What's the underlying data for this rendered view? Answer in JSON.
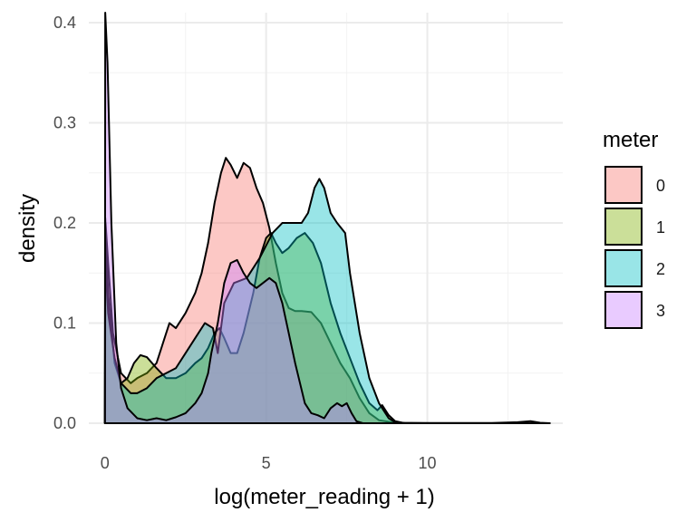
{
  "chart_data": {
    "type": "area",
    "chart_kind": "density",
    "xlabel": "log(meter_reading + 1)",
    "ylabel": "density",
    "xlim": [
      -0.5,
      14.2
    ],
    "ylim": [
      0,
      0.41
    ],
    "x_ticks": [
      0,
      5,
      10
    ],
    "x_tick_labels": [
      "0",
      "5",
      "10"
    ],
    "y_ticks": [
      0.0,
      0.1,
      0.2,
      0.3,
      0.4
    ],
    "y_tick_labels": [
      "0.0",
      "0.1",
      "0.2",
      "0.3",
      "0.4"
    ],
    "grid": true,
    "legend": {
      "title": "meter",
      "position": "right"
    },
    "fill_opacity": 0.4,
    "series": [
      {
        "label": "0",
        "color": "#F8766D",
        "points": [
          [
            0,
            0
          ],
          [
            0.02,
            0.2
          ],
          [
            0.1,
            0.16
          ],
          [
            0.25,
            0.09
          ],
          [
            0.5,
            0.05
          ],
          [
            0.8,
            0.04
          ],
          [
            1.0,
            0.045
          ],
          [
            1.3,
            0.05
          ],
          [
            1.6,
            0.06
          ],
          [
            1.8,
            0.08
          ],
          [
            2.0,
            0.1
          ],
          [
            2.2,
            0.095
          ],
          [
            2.5,
            0.11
          ],
          [
            2.8,
            0.13
          ],
          [
            3.0,
            0.15
          ],
          [
            3.2,
            0.18
          ],
          [
            3.4,
            0.22
          ],
          [
            3.6,
            0.25
          ],
          [
            3.75,
            0.265
          ],
          [
            3.9,
            0.258
          ],
          [
            4.1,
            0.245
          ],
          [
            4.3,
            0.26
          ],
          [
            4.5,
            0.255
          ],
          [
            4.7,
            0.235
          ],
          [
            4.9,
            0.22
          ],
          [
            5.1,
            0.195
          ],
          [
            5.3,
            0.16
          ],
          [
            5.5,
            0.13
          ],
          [
            5.7,
            0.115
          ],
          [
            5.9,
            0.112
          ],
          [
            6.1,
            0.112
          ],
          [
            6.4,
            0.111
          ],
          [
            6.7,
            0.1
          ],
          [
            7.0,
            0.08
          ],
          [
            7.3,
            0.06
          ],
          [
            7.6,
            0.045
          ],
          [
            7.9,
            0.025
          ],
          [
            8.2,
            0.01
          ],
          [
            8.5,
            0.003
          ],
          [
            9.0,
            0.0005
          ],
          [
            10,
            0.0002
          ],
          [
            12.0,
            0.0002
          ],
          [
            12.8,
            0.001
          ],
          [
            13.2,
            0.002
          ],
          [
            13.5,
            0.0005
          ],
          [
            13.8,
            0
          ]
        ]
      },
      {
        "label": "1",
        "color": "#7CAE00",
        "points": [
          [
            0,
            0
          ],
          [
            0.01,
            0.205
          ],
          [
            0.1,
            0.13
          ],
          [
            0.3,
            0.06
          ],
          [
            0.5,
            0.04
          ],
          [
            0.7,
            0.045
          ],
          [
            0.9,
            0.06
          ],
          [
            1.1,
            0.068
          ],
          [
            1.3,
            0.066
          ],
          [
            1.6,
            0.055
          ],
          [
            1.9,
            0.045
          ],
          [
            2.2,
            0.045
          ],
          [
            2.5,
            0.05
          ],
          [
            2.8,
            0.06
          ],
          [
            3.0,
            0.065
          ],
          [
            3.2,
            0.075
          ],
          [
            3.4,
            0.09
          ],
          [
            3.55,
            0.095
          ],
          [
            3.7,
            0.085
          ],
          [
            3.9,
            0.07
          ],
          [
            4.1,
            0.07
          ],
          [
            4.3,
            0.09
          ],
          [
            4.6,
            0.13
          ],
          [
            4.8,
            0.165
          ],
          [
            5.0,
            0.185
          ],
          [
            5.15,
            0.19
          ],
          [
            5.3,
            0.18
          ],
          [
            5.5,
            0.17
          ],
          [
            5.7,
            0.175
          ],
          [
            5.95,
            0.185
          ],
          [
            6.2,
            0.19
          ],
          [
            6.45,
            0.18
          ],
          [
            6.7,
            0.16
          ],
          [
            7.0,
            0.12
          ],
          [
            7.3,
            0.09
          ],
          [
            7.6,
            0.065
          ],
          [
            7.9,
            0.04
          ],
          [
            8.2,
            0.02
          ],
          [
            8.45,
            0.013
          ],
          [
            8.6,
            0.018
          ],
          [
            8.8,
            0.008
          ],
          [
            9.0,
            0.002
          ],
          [
            9.3,
            0
          ]
        ]
      },
      {
        "label": "2",
        "color": "#00BFC4",
        "points": [
          [
            0,
            0
          ],
          [
            0.01,
            0.165
          ],
          [
            0.1,
            0.11
          ],
          [
            0.3,
            0.065
          ],
          [
            0.5,
            0.04
          ],
          [
            0.8,
            0.03
          ],
          [
            1.0,
            0.03
          ],
          [
            1.3,
            0.035
          ],
          [
            1.6,
            0.045
          ],
          [
            1.9,
            0.05
          ],
          [
            2.2,
            0.055
          ],
          [
            2.5,
            0.07
          ],
          [
            2.8,
            0.085
          ],
          [
            3.1,
            0.1
          ],
          [
            3.35,
            0.095
          ],
          [
            3.5,
            0.07
          ],
          [
            3.7,
            0.12
          ],
          [
            4.0,
            0.14
          ],
          [
            4.4,
            0.145
          ],
          [
            4.8,
            0.165
          ],
          [
            5.2,
            0.19
          ],
          [
            5.5,
            0.2
          ],
          [
            5.8,
            0.2
          ],
          [
            6.1,
            0.2
          ],
          [
            6.3,
            0.21
          ],
          [
            6.5,
            0.235
          ],
          [
            6.65,
            0.244
          ],
          [
            6.8,
            0.235
          ],
          [
            7.0,
            0.21
          ],
          [
            7.2,
            0.2
          ],
          [
            7.45,
            0.19
          ],
          [
            7.6,
            0.15
          ],
          [
            7.9,
            0.09
          ],
          [
            8.2,
            0.045
          ],
          [
            8.5,
            0.02
          ],
          [
            8.8,
            0.005
          ],
          [
            9.0,
            0.001
          ],
          [
            9.3,
            0
          ]
        ]
      },
      {
        "label": "3",
        "color": "#C77CFF",
        "points": [
          [
            0,
            0
          ],
          [
            0.01,
            0.41
          ],
          [
            0.08,
            0.36
          ],
          [
            0.2,
            0.2
          ],
          [
            0.35,
            0.08
          ],
          [
            0.5,
            0.035
          ],
          [
            0.7,
            0.015
          ],
          [
            1.0,
            0.005
          ],
          [
            1.3,
            0.003
          ],
          [
            1.6,
            0.005
          ],
          [
            1.9,
            0.003
          ],
          [
            2.2,
            0.006
          ],
          [
            2.5,
            0.01
          ],
          [
            2.8,
            0.02
          ],
          [
            3.0,
            0.03
          ],
          [
            3.2,
            0.05
          ],
          [
            3.3,
            0.07
          ],
          [
            3.5,
            0.1
          ],
          [
            3.7,
            0.14
          ],
          [
            3.9,
            0.16
          ],
          [
            4.1,
            0.163
          ],
          [
            4.3,
            0.15
          ],
          [
            4.5,
            0.14
          ],
          [
            4.7,
            0.135
          ],
          [
            4.9,
            0.14
          ],
          [
            5.1,
            0.145
          ],
          [
            5.3,
            0.14
          ],
          [
            5.5,
            0.12
          ],
          [
            5.7,
            0.09
          ],
          [
            5.9,
            0.06
          ],
          [
            6.05,
            0.04
          ],
          [
            6.2,
            0.02
          ],
          [
            6.4,
            0.01
          ],
          [
            6.6,
            0.008
          ],
          [
            6.8,
            0.005
          ],
          [
            7.0,
            0.015
          ],
          [
            7.2,
            0.02
          ],
          [
            7.35,
            0.017
          ],
          [
            7.5,
            0.02
          ],
          [
            7.65,
            0.01
          ],
          [
            7.8,
            0.002
          ],
          [
            8.0,
            0
          ]
        ]
      }
    ]
  }
}
